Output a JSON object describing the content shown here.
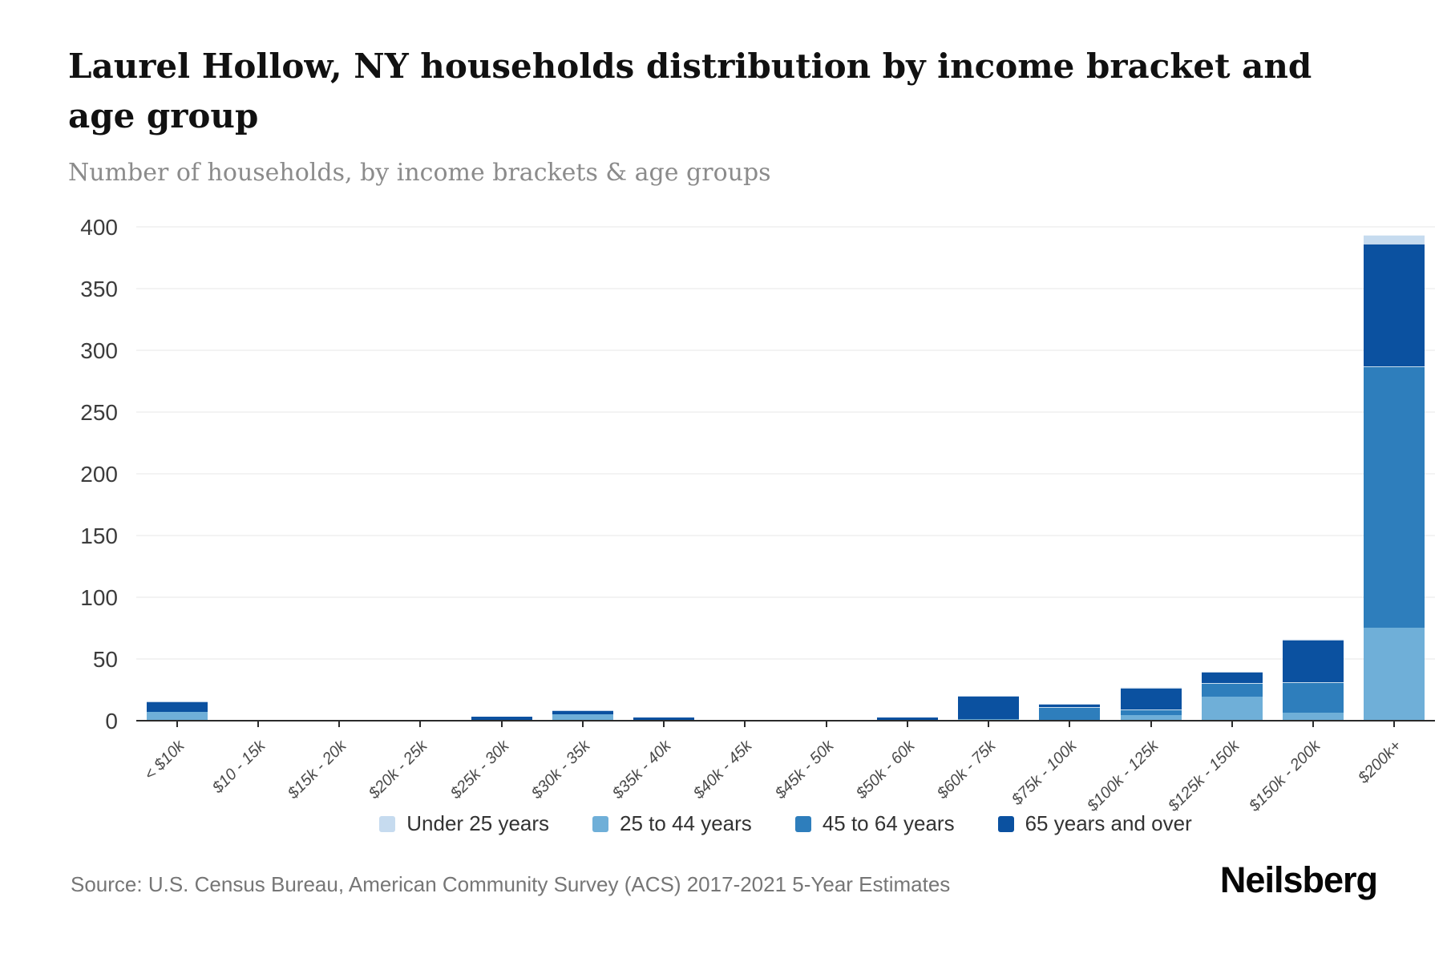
{
  "header": {
    "title_line1": "Laurel Hollow, NY households distribution by income bracket and",
    "title_line2": "age group",
    "subtitle": "Number of households, by income brackets & age groups"
  },
  "footer": {
    "source": "Source: U.S. Census Bureau, American Community Survey (ACS) 2017-2021 5-Year Estimates",
    "brand": "Neilsberg"
  },
  "chart_data": {
    "type": "bar",
    "stacked": true,
    "title": "Laurel Hollow, NY households distribution by income bracket and age group",
    "subtitle": "Number of households, by income brackets & age groups",
    "xlabel": "",
    "ylabel": "Number of households",
    "ylim": [
      0,
      400
    ],
    "ytick_interval": 50,
    "grid": "horizontal",
    "legend_position": "bottom",
    "categories": [
      "< $10k",
      "$10 - 15k",
      "$15k - 20k",
      "$20k - 25k",
      "$25k - 30k",
      "$30k - 35k",
      "$35k - 40k",
      "$40k - 45k",
      "$45k - 50k",
      "$50k - 60k",
      "$60k - 75k",
      "$75k - 100k",
      "$100k - 125k",
      "$125k - 150k",
      "$150k - 200k",
      "$200k+"
    ],
    "series": [
      {
        "name": "Under 25 years",
        "color": "#c6dbef",
        "values": [
          1,
          0,
          0,
          0,
          0,
          0,
          0,
          0,
          0,
          0,
          0,
          0,
          1,
          0,
          1,
          7
        ]
      },
      {
        "name": "25 to 44 years",
        "color": "#6fafd8",
        "values": [
          8,
          0,
          0,
          0,
          0,
          6,
          0,
          0,
          0,
          0,
          2,
          1,
          5,
          20,
          7,
          76
        ]
      },
      {
        "name": "45 to 64 years",
        "color": "#2e7ebc",
        "values": [
          0,
          0,
          0,
          0,
          0,
          0,
          0,
          0,
          0,
          0,
          0,
          11,
          5,
          11,
          25,
          212
        ]
      },
      {
        "name": "65 years and over",
        "color": "#0b51a0",
        "values": [
          8,
          0,
          0,
          0,
          4,
          3,
          3,
          0,
          0,
          3,
          19,
          2,
          17,
          9,
          34,
          99
        ]
      }
    ],
    "stack_order_bottom_to_top": [
      "25 to 44 years",
      "45 to 64 years",
      "65 years and over",
      "Under 25 years"
    ]
  }
}
